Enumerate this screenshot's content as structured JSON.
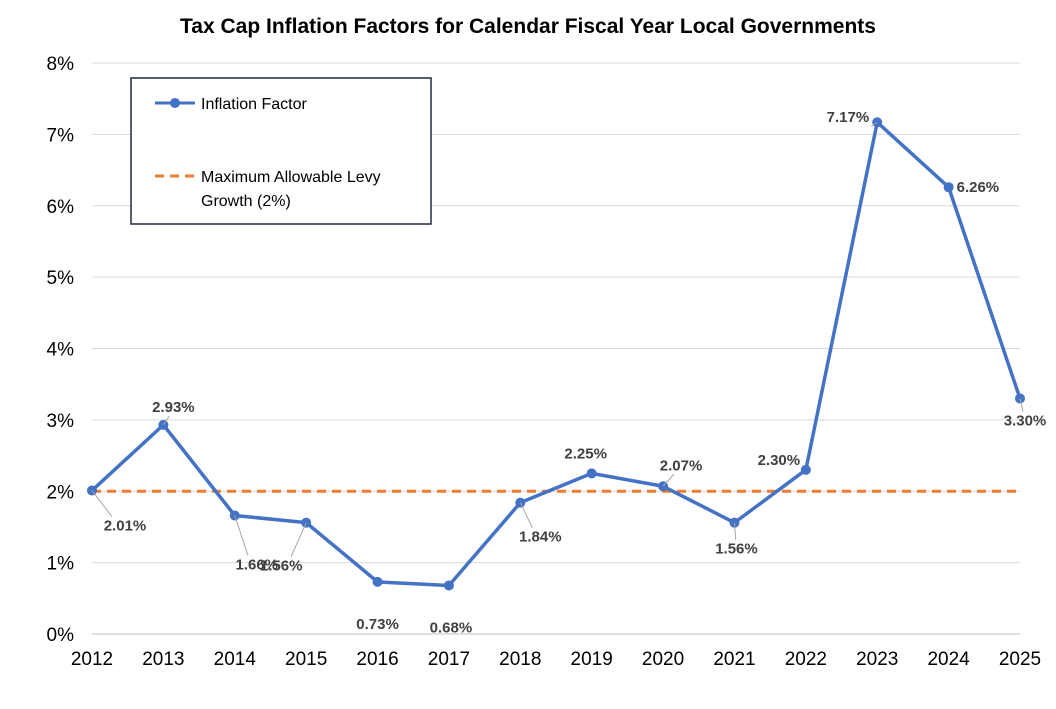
{
  "chart_data": {
    "type": "line",
    "title": "Tax Cap Inflation Factors for Calendar Fiscal Year Local Governments",
    "xlabel": "",
    "ylabel": "",
    "categories": [
      "2012",
      "2013",
      "2014",
      "2015",
      "2016",
      "2017",
      "2018",
      "2019",
      "2020",
      "2021",
      "2022",
      "2023",
      "2024",
      "2025"
    ],
    "ylim": [
      0,
      8
    ],
    "y_ticks": [
      "0%",
      "1%",
      "2%",
      "3%",
      "4%",
      "5%",
      "6%",
      "7%",
      "8%"
    ],
    "grid": "horizontal",
    "legend_position": "top-left",
    "series": [
      {
        "name": "Inflation Factor",
        "color": "#4472C4",
        "style": "solid-with-markers",
        "values": [
          2.01,
          2.93,
          1.66,
          1.56,
          0.73,
          0.68,
          1.84,
          2.25,
          2.07,
          1.56,
          2.3,
          7.17,
          6.26,
          3.3
        ],
        "labels": [
          "2.01%",
          "2.93%",
          "1.66%",
          "1.56%",
          "0.73%",
          "0.68%",
          "1.84%",
          "2.25%",
          "2.07%",
          "1.56%",
          "2.30%",
          "7.17%",
          "6.26%",
          "3.30%"
        ]
      },
      {
        "name": "Maximum Allowable Levy Growth (2%)",
        "name_lines": [
          "Maximum Allowable Levy",
          "Growth (2%)"
        ],
        "color": "#ED7D31",
        "style": "dashed",
        "values": [
          2,
          2,
          2,
          2,
          2,
          2,
          2,
          2,
          2,
          2,
          2,
          2,
          2,
          2
        ]
      }
    ]
  }
}
